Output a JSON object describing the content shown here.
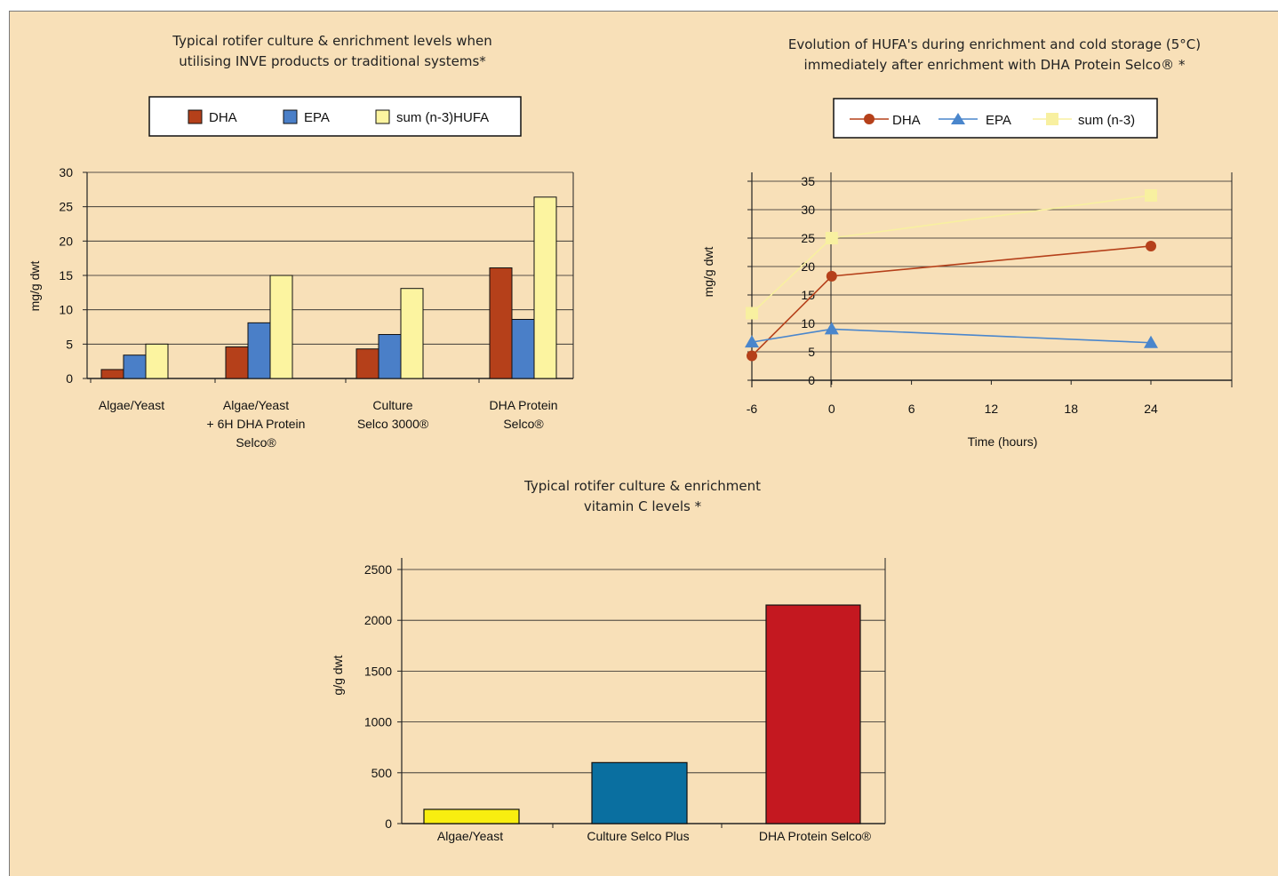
{
  "colors": {
    "background": "#f8e0b8",
    "dha": "#b5401a",
    "epa": "#4a7fc8",
    "hufa": "#fcf4a0",
    "dha_line": "#b5401a",
    "epa_line": "#4a86cc",
    "n3_line": "#f8f0a0",
    "vitc": [
      "#f8ee10",
      "#0a6fa0",
      "#c41820"
    ]
  },
  "chart_data": [
    {
      "type": "bar",
      "title": [
        "Typical rotifer culture & enrichment levels when",
        "utilising INVE products or traditional systems*"
      ],
      "ylabel": "mg/g dwt",
      "ylim": [
        0,
        30
      ],
      "yticks": [
        "0",
        "5",
        "10",
        "15",
        "20",
        "25",
        "30"
      ],
      "categories": [
        [
          "Algae/Yeast"
        ],
        [
          "Algae/Yeast",
          "+ 6H DHA Protein",
          "Selco®"
        ],
        [
          "Culture",
          "Selco 3000®"
        ],
        [
          "DHA Protein",
          "Selco®"
        ]
      ],
      "series": [
        {
          "name": "DHA",
          "values": [
            1.3,
            4.6,
            4.3,
            16.1
          ]
        },
        {
          "name": "EPA",
          "values": [
            3.4,
            8.1,
            6.4,
            8.6
          ]
        },
        {
          "name": "sum (n-3)HUFA",
          "values": [
            5.0,
            15.0,
            13.1,
            26.4
          ]
        }
      ],
      "grid": true,
      "legend": "top"
    },
    {
      "type": "line",
      "title": [
        "Evolution of HUFA's during enrichment and cold storage (5°C)",
        "immediately after enrichment with DHA Protein Selco® *"
      ],
      "xlabel": "Time (hours)",
      "ylabel": "mg/g dwt",
      "ylim": [
        0,
        35
      ],
      "xlim": [
        -6,
        30
      ],
      "xticks": [
        "-6",
        "0",
        "6",
        "12",
        "18",
        "24"
      ],
      "yticks": [
        "0",
        "5",
        "10",
        "15",
        "20",
        "25",
        "30",
        "35"
      ],
      "series": [
        {
          "name": "DHA",
          "marker": "circle",
          "x": [
            -6,
            0,
            24
          ],
          "y": [
            4.3,
            18.3,
            23.6
          ]
        },
        {
          "name": "EPA",
          "marker": "triangle",
          "x": [
            -6,
            0,
            24
          ],
          "y": [
            6.7,
            9.0,
            6.6
          ]
        },
        {
          "name": "sum (n-3)",
          "marker": "square",
          "x": [
            -6,
            0,
            24
          ],
          "y": [
            11.8,
            25.0,
            32.5
          ]
        }
      ],
      "grid": true,
      "legend": "top"
    },
    {
      "type": "bar",
      "title": [
        "Typical rotifer culture & enrichment",
        "vitamin C levels *"
      ],
      "ylabel": "g/g dwt",
      "ylim": [
        0,
        2500
      ],
      "yticks": [
        "0",
        "500",
        "1000",
        "1500",
        "2000",
        "2500"
      ],
      "categories": [
        "Algae/Yeast",
        "Culture Selco Plus",
        "DHA Protein Selco®"
      ],
      "values": [
        140,
        600,
        2150
      ],
      "grid": true
    }
  ]
}
